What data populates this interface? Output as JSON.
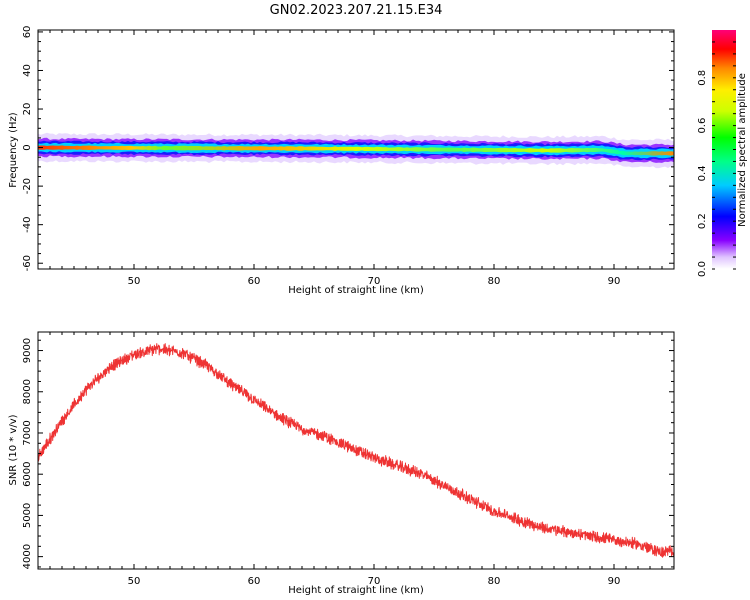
{
  "title": "GN02.2023.207.21.15.E34",
  "chart_data": [
    {
      "type": "heatmap",
      "xlabel": "Height of straight line (km)",
      "ylabel": "Frequency (Hz)",
      "xlim": [
        42,
        95
      ],
      "ylim": [
        -63,
        61
      ],
      "xticks": [
        50,
        60,
        70,
        80,
        90
      ],
      "yticks": [
        -60,
        -40,
        -20,
        0,
        20,
        40,
        60
      ],
      "band_center": [
        [
          42,
          0
        ],
        [
          55,
          -0.3
        ],
        [
          65,
          -0.5
        ],
        [
          75,
          -1
        ],
        [
          85,
          -1.5
        ],
        [
          89,
          -1.2
        ],
        [
          91,
          -3
        ],
        [
          95,
          -3
        ]
      ],
      "colorbar": {
        "label": "Normalized spectral amplitude",
        "range": [
          0,
          1
        ],
        "ticks": [
          0.0,
          0.2,
          0.4,
          0.6,
          0.8
        ]
      }
    },
    {
      "type": "line",
      "xlabel": "Height of straight line (km)",
      "ylabel": "SNR (10 * v/v)",
      "xlim": [
        42,
        95
      ],
      "ylim": [
        3700,
        9450
      ],
      "xticks": [
        50,
        60,
        70,
        80,
        90
      ],
      "yticks": [
        4000,
        5000,
        6000,
        7000,
        8000,
        9000
      ],
      "color": "#ee3333",
      "series": [
        {
          "x": [
            42,
            44,
            46,
            48,
            50,
            52,
            54,
            56,
            58,
            60,
            62,
            64,
            66,
            68,
            70,
            72,
            74,
            76,
            78,
            80,
            82,
            84,
            86,
            88,
            90,
            92,
            94,
            95
          ],
          "y": [
            6400,
            7300,
            8050,
            8600,
            8900,
            9050,
            8950,
            8650,
            8200,
            7800,
            7400,
            7100,
            6900,
            6650,
            6400,
            6200,
            6000,
            5700,
            5400,
            5100,
            4900,
            4700,
            4600,
            4500,
            4400,
            4300,
            4100,
            4150
          ]
        }
      ]
    }
  ]
}
